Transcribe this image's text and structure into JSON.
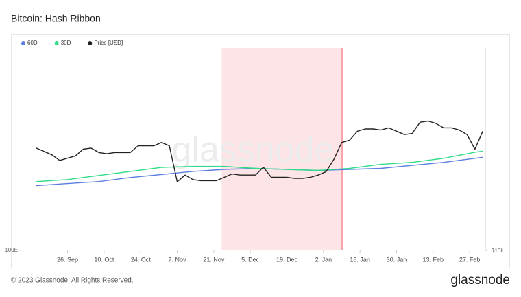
{
  "chart_data": {
    "type": "line",
    "title": "Bitcoin: Hash Ribbon",
    "watermark": "glassnode",
    "xlim": [
      -18,
      160
    ],
    "xticks": [
      {
        "value": 0,
        "label": "26. Sep"
      },
      {
        "value": 14,
        "label": "10. Oct"
      },
      {
        "value": 28,
        "label": "24. Oct"
      },
      {
        "value": 42,
        "label": "7. Nov"
      },
      {
        "value": 56,
        "label": "21. Nov"
      },
      {
        "value": 70,
        "label": "5. Dec"
      },
      {
        "value": 84,
        "label": "19. Dec"
      },
      {
        "value": 98,
        "label": "2. Jan"
      },
      {
        "value": 112,
        "label": "16. Jan"
      },
      {
        "value": 126,
        "label": "30. Jan"
      },
      {
        "value": 140,
        "label": "13. Feb"
      },
      {
        "value": 154,
        "label": "27. Feb"
      }
    ],
    "ylim": [
      100,
      300
    ],
    "yticks": [
      {
        "value": 100,
        "label": "100E"
      }
    ],
    "y2lim": [
      10000,
      28000
    ],
    "y2ticks": [
      {
        "value": 10000,
        "label": "$10k"
      }
    ],
    "shade": {
      "xlim": [
        59,
        105
      ],
      "color": "#fde4e6",
      "edge_color": "#f7a5aa"
    },
    "series": [
      {
        "name": "60D",
        "color": "#5b7fe0",
        "x": [
          -12,
          0,
          12,
          24,
          36,
          48,
          60,
          72,
          84,
          96,
          108,
          120,
          132,
          144,
          156,
          159
        ],
        "values": [
          164,
          166,
          168,
          172,
          175,
          178,
          180,
          181,
          180,
          179,
          180,
          181,
          184,
          187,
          191,
          192
        ]
      },
      {
        "name": "30D",
        "color": "#2fdc87",
        "x": [
          -12,
          0,
          12,
          24,
          36,
          48,
          60,
          72,
          84,
          96,
          108,
          120,
          132,
          144,
          156,
          159
        ],
        "values": [
          168,
          170,
          174,
          178,
          182,
          183,
          183,
          181,
          180,
          179,
          181,
          185,
          187,
          191,
          197,
          198
        ]
      },
      {
        "name": "Price [USD]",
        "color": "#222222",
        "axis": "y2",
        "x": [
          -12,
          -9,
          -6,
          -3,
          0,
          3,
          6,
          9,
          12,
          15,
          18,
          21,
          24,
          27,
          30,
          33,
          36,
          39,
          42,
          45,
          48,
          51,
          54,
          57,
          60,
          63,
          66,
          69,
          72,
          75,
          78,
          81,
          84,
          87,
          90,
          93,
          96,
          99,
          102,
          105,
          108,
          111,
          114,
          117,
          120,
          123,
          126,
          129,
          132,
          135,
          138,
          141,
          144,
          147,
          150,
          153,
          156,
          159
        ],
        "values": [
          19100,
          18800,
          18500,
          18000,
          18200,
          18400,
          19000,
          19100,
          18700,
          18600,
          18700,
          18700,
          18700,
          19300,
          19300,
          19300,
          19600,
          19300,
          16100,
          16700,
          16300,
          16200,
          16200,
          16200,
          16500,
          16800,
          16700,
          16700,
          16700,
          17400,
          16500,
          16500,
          16500,
          16400,
          16400,
          16500,
          16700,
          17000,
          18100,
          19600,
          19800,
          20600,
          20800,
          20800,
          20700,
          20900,
          20600,
          20300,
          20400,
          21400,
          21500,
          21300,
          20900,
          20900,
          20700,
          20300,
          19000,
          20600
        ]
      }
    ]
  },
  "footer": {
    "copyright": "© 2023 Glassnode. All Rights Reserved.",
    "brand": "glassnode"
  }
}
